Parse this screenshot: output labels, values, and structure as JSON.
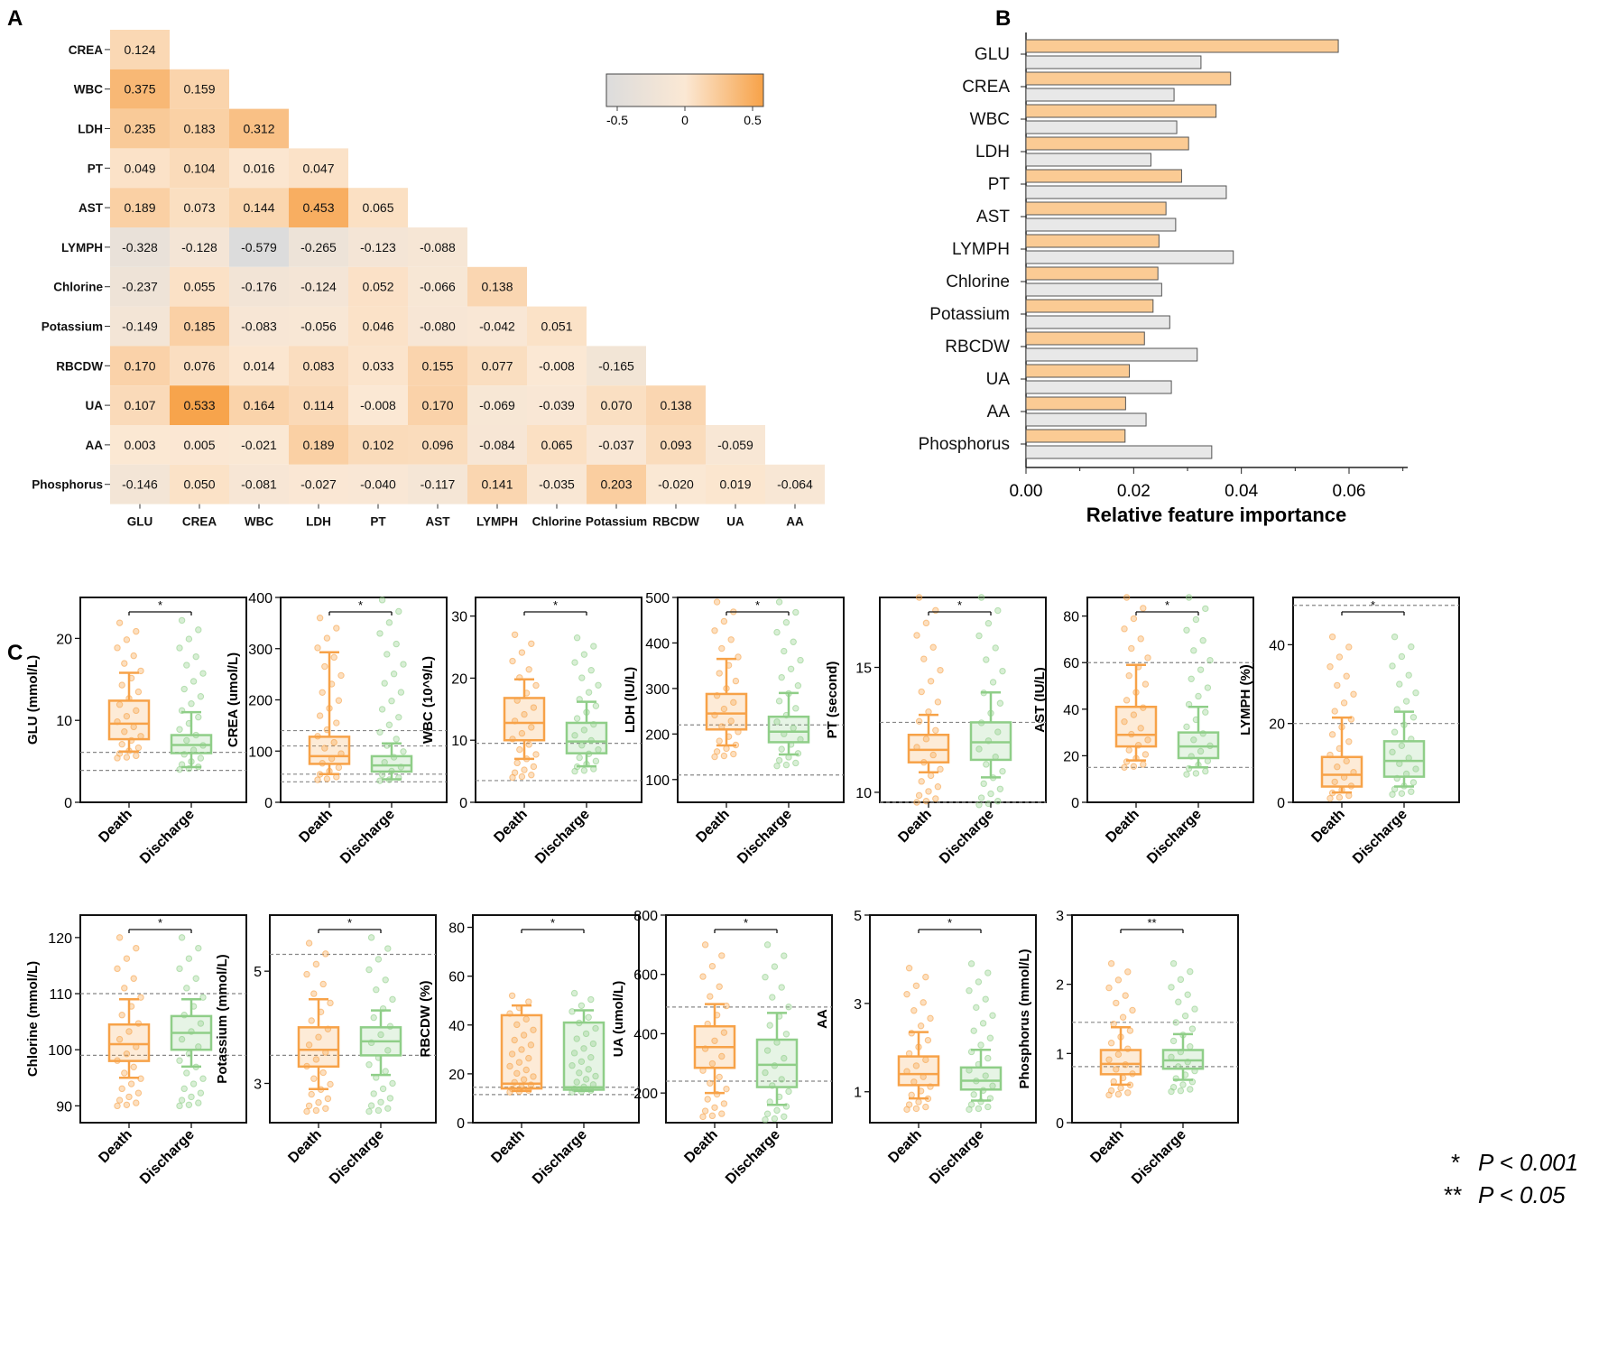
{
  "panel_labels": {
    "a": "A",
    "b": "B",
    "c": "C"
  },
  "colors": {
    "death": "#f7a248",
    "discharge": "#8fce88",
    "heat_pos": "#f7a248",
    "heat_neg": "#dcdcdc",
    "bar_gray": "#e8e8e8",
    "bar_orange": "#fbcb94"
  },
  "legend_p": [
    {
      "mark": "*",
      "text": "P < 0.001"
    },
    {
      "mark": "**",
      "text": "P < 0.05"
    }
  ],
  "chart_data": [
    {
      "type": "heatmap",
      "title": "A",
      "rows": [
        "CREA",
        "WBC",
        "LDH",
        "PT",
        "AST",
        "LYMPH",
        "Chlorine",
        "Potassium",
        "RBCDW",
        "UA",
        "AA",
        "Phosphorus"
      ],
      "cols": [
        "GLU",
        "CREA",
        "WBC",
        "LDH",
        "PT",
        "AST",
        "LYMPH",
        "Chlorine",
        "Potassium",
        "RBCDW",
        "UA",
        "AA"
      ],
      "values": [
        [
          "0.124"
        ],
        [
          "0.375",
          "0.159"
        ],
        [
          "0.235",
          "0.183",
          "0.312"
        ],
        [
          "0.049",
          "0.104",
          "0.016",
          "0.047"
        ],
        [
          "0.189",
          "0.073",
          "0.144",
          "0.453",
          "0.065"
        ],
        [
          "-0.328",
          "-0.128",
          "-0.579",
          "-0.265",
          "-0.123",
          "-0.088"
        ],
        [
          "-0.237",
          "0.055",
          "-0.176",
          "-0.124",
          "0.052",
          "-0.066",
          "0.138"
        ],
        [
          "-0.149",
          "0.185",
          "-0.083",
          "-0.056",
          "0.046",
          "-0.080",
          "-0.042",
          "0.051"
        ],
        [
          "0.170",
          "0.076",
          "0.014",
          "0.083",
          "0.033",
          "0.155",
          "0.077",
          "-0.008",
          "-0.165"
        ],
        [
          "0.107",
          "0.533",
          "0.164",
          "0.114",
          "-0.008",
          "0.170",
          "-0.069",
          "-0.039",
          "0.070",
          "0.138"
        ],
        [
          "0.003",
          "0.005",
          "-0.021",
          "0.189",
          "0.102",
          "0.096",
          "-0.084",
          "0.065",
          "-0.037",
          "0.093",
          "-0.059"
        ],
        [
          "-0.146",
          "0.050",
          "-0.081",
          "-0.027",
          "-0.040",
          "-0.117",
          "0.141",
          "-0.035",
          "0.203",
          "-0.020",
          "0.019",
          "-0.064"
        ]
      ],
      "colorbar": {
        "range": [
          -0.5,
          0.5
        ],
        "ticks": [
          "-0.5",
          "0",
          "0.5"
        ]
      }
    },
    {
      "type": "bar",
      "title": "B",
      "orientation": "horizontal",
      "categories": [
        "GLU",
        "CREA",
        "WBC",
        "LDH",
        "PT",
        "AST",
        "LYMPH",
        "Chlorine",
        "Potassium",
        "RBCDW",
        "UA",
        "AA",
        "Phosphorus"
      ],
      "series": [
        {
          "name": "orange",
          "values": [
            0.058,
            0.038,
            0.0353,
            0.0302,
            0.0289,
            0.026,
            0.0247,
            0.0245,
            0.0236,
            0.022,
            0.0192,
            0.0185,
            0.0184
          ]
        },
        {
          "name": "gray",
          "values": [
            0.0325,
            0.0275,
            0.028,
            0.0232,
            0.0372,
            0.0278,
            0.0385,
            0.0252,
            0.0267,
            0.0318,
            0.027,
            0.0223,
            0.0345
          ]
        }
      ],
      "xlabel": "Relative feature importance",
      "xlim": [
        0,
        0.07
      ],
      "xticks": [
        "0.00",
        "0.02",
        "0.04",
        "0.06"
      ]
    },
    {
      "type": "box",
      "title": "C",
      "groups": [
        "Death",
        "Discharge"
      ],
      "panels": [
        {
          "ylabel": "GLU (mmol/L)",
          "ylim": [
            0,
            25
          ],
          "ticks": [
            "0",
            "10",
            "20"
          ],
          "ref": [
            3.9,
            6.1
          ],
          "sig": "*",
          "death": {
            "whislo": 6.2,
            "q1": 7.7,
            "med": 9.6,
            "q3": 12.4,
            "whishi": 15.8,
            "pmin": 5.4,
            "pmax": 21.9
          },
          "discharge": {
            "whislo": 4.3,
            "q1": 6.0,
            "med": 7.0,
            "q3": 8.2,
            "whishi": 11.0,
            "pmin": 4.0,
            "pmax": 22.2
          }
        },
        {
          "ylabel": "CREA (umol/L)",
          "ylim": [
            0,
            400
          ],
          "ticks": [
            "0",
            "100",
            "200",
            "300",
            "400"
          ],
          "ref": [
            40,
            55,
            110,
            140
          ],
          "sig": "*",
          "death": {
            "whislo": 55,
            "q1": 75,
            "med": 90,
            "q3": 128,
            "whishi": 293,
            "pmin": 44,
            "pmax": 360
          },
          "discharge": {
            "whislo": 45,
            "q1": 60,
            "med": 72,
            "q3": 90,
            "whishi": 115,
            "pmin": 42,
            "pmax": 395
          }
        },
        {
          "ylabel": "WBC (10^9/L)",
          "ylim": [
            0,
            33
          ],
          "ticks": [
            "0",
            "10",
            "20",
            "30"
          ],
          "ref": [
            3.5,
            9.5
          ],
          "sig": "*",
          "death": {
            "whislo": 7.0,
            "q1": 10.0,
            "med": 12.8,
            "q3": 16.8,
            "whishi": 19.8,
            "pmin": 4.0,
            "pmax": 27.0
          },
          "discharge": {
            "whislo": 5.8,
            "q1": 7.9,
            "med": 9.8,
            "q3": 12.8,
            "whishi": 16.2,
            "pmin": 5.0,
            "pmax": 26.5
          }
        },
        {
          "ylabel": "LDH (IU/L)",
          "ylim": [
            50,
            500
          ],
          "ticks": [
            "100",
            "200",
            "300",
            "400",
            "500"
          ],
          "ref": [
            110,
            220
          ],
          "sig": "*",
          "death": {
            "whislo": 175,
            "q1": 210,
            "med": 245,
            "q3": 288,
            "whishi": 365,
            "pmin": 150,
            "pmax": 490
          },
          "discharge": {
            "whislo": 155,
            "q1": 182,
            "med": 205,
            "q3": 238,
            "whishi": 290,
            "pmin": 130,
            "pmax": 490
          }
        },
        {
          "ylabel": "PT (second)",
          "ylim": [
            9.6,
            17.8
          ],
          "ticks": [
            "10",
            "15"
          ],
          "ref": [
            9.6,
            12.8
          ],
          "sig": "*",
          "death": {
            "whislo": 10.8,
            "q1": 11.2,
            "med": 11.7,
            "q3": 12.3,
            "whishi": 13.1,
            "pmin": 9.6,
            "pmax": 17.8
          },
          "discharge": {
            "whislo": 10.6,
            "q1": 11.3,
            "med": 12.0,
            "q3": 12.8,
            "whishi": 14.0,
            "pmin": 9.5,
            "pmax": 17.8
          }
        },
        {
          "ylabel": "AST (IU/L)",
          "ylim": [
            0,
            88
          ],
          "ticks": [
            "0",
            "20",
            "40",
            "60",
            "80"
          ],
          "ref": [
            15,
            60
          ],
          "sig": "*",
          "death": {
            "whislo": 18,
            "q1": 24,
            "med": 29,
            "q3": 41,
            "whishi": 59,
            "pmin": 15,
            "pmax": 88
          },
          "discharge": {
            "whislo": 15,
            "q1": 19,
            "med": 24,
            "q3": 30,
            "whishi": 41,
            "pmin": 12,
            "pmax": 88
          }
        },
        {
          "ylabel": "LYMPH (%)",
          "ylim": [
            0,
            52
          ],
          "ticks": [
            "0",
            "20",
            "40"
          ],
          "ref": [
            20,
            50
          ],
          "sig": "*",
          "death": {
            "whislo": 2.5,
            "q1": 4,
            "med": 7,
            "q3": 11.5,
            "whishi": 21.5,
            "pmin": 1,
            "pmax": 42
          },
          "discharge": {
            "whislo": 4,
            "q1": 6.5,
            "med": 10.5,
            "q3": 15.5,
            "whishi": 23,
            "pmin": 2,
            "pmax": 42
          }
        },
        {
          "ylabel": "Chlorine (mmol/L)",
          "ylim": [
            87,
            124
          ],
          "ticks": [
            "90",
            "100",
            "110",
            "120"
          ],
          "ref": [
            99,
            110
          ],
          "sig": "*",
          "death": {
            "whislo": 95,
            "q1": 98,
            "med": 101,
            "q3": 104.5,
            "whishi": 109,
            "pmin": 90,
            "pmax": 120
          },
          "discharge": {
            "whislo": 97,
            "q1": 100,
            "med": 103,
            "q3": 106,
            "whishi": 109,
            "pmin": 90,
            "pmax": 120
          }
        },
        {
          "ylabel": "Potassium (mmol/L)",
          "ylim": [
            2.3,
            6.0
          ],
          "ticks": [
            "3",
            "5"
          ],
          "ref": [
            3.5,
            5.3
          ],
          "sig": "*",
          "death": {
            "whislo": 2.9,
            "q1": 3.3,
            "med": 3.6,
            "q3": 4.0,
            "whishi": 4.5,
            "pmin": 2.5,
            "pmax": 5.5
          },
          "discharge": {
            "whislo": 3.15,
            "q1": 3.5,
            "med": 3.75,
            "q3": 4.0,
            "whishi": 4.3,
            "pmin": 2.5,
            "pmax": 5.6
          }
        },
        {
          "ylabel": "RBCDW (%)",
          "ylim": [
            0,
            85
          ],
          "ticks": [
            "0",
            "20",
            "40",
            "60",
            "80"
          ],
          "ref": [
            11.5,
            14.5
          ],
          "sig": "*",
          "death": {
            "whislo": 13,
            "q1": 14,
            "med": 16,
            "q3": 44,
            "whishi": 48,
            "pmin": 12.5,
            "pmax": 52
          },
          "discharge": {
            "whislo": 13,
            "q1": 13.5,
            "med": 14.5,
            "q3": 41,
            "whishi": 46,
            "pmin": 12.5,
            "pmax": 53
          }
        },
        {
          "ylabel": "UA (umol/L)",
          "ylim": [
            100,
            800
          ],
          "ticks": [
            "200",
            "400",
            "600",
            "800"
          ],
          "ref": [
            240,
            490
          ],
          "sig": "*",
          "death": {
            "whislo": 200,
            "q1": 285,
            "med": 355,
            "q3": 425,
            "whishi": 500,
            "pmin": 120,
            "pmax": 700
          },
          "discharge": {
            "whislo": 160,
            "q1": 220,
            "med": 295,
            "q3": 380,
            "whishi": 470,
            "pmin": 110,
            "pmax": 700
          }
        },
        {
          "ylabel": "AA",
          "ylim": [
            0.3,
            5
          ],
          "ticks": [
            "1",
            "3",
            "5"
          ],
          "ref": [],
          "sig": "*",
          "death": {
            "whislo": 0.85,
            "q1": 1.15,
            "med": 1.4,
            "q3": 1.8,
            "whishi": 2.35,
            "pmin": 0.6,
            "pmax": 3.8
          },
          "discharge": {
            "whislo": 0.8,
            "q1": 1.05,
            "med": 1.25,
            "q3": 1.55,
            "whishi": 1.95,
            "pmin": 0.6,
            "pmax": 3.9
          }
        },
        {
          "ylabel": "Phosphorus (mmol/L)",
          "ylim": [
            0,
            3
          ],
          "ticks": [
            "0",
            "1",
            "2",
            "3"
          ],
          "ref": [
            0.81,
            1.45
          ],
          "sig": "**",
          "death": {
            "whislo": 0.55,
            "q1": 0.7,
            "med": 0.85,
            "q3": 1.05,
            "whishi": 1.38,
            "pmin": 0.4,
            "pmax": 2.3
          },
          "discharge": {
            "whislo": 0.62,
            "q1": 0.78,
            "med": 0.9,
            "q3": 1.05,
            "whishi": 1.28,
            "pmin": 0.45,
            "pmax": 2.3
          }
        }
      ]
    }
  ]
}
